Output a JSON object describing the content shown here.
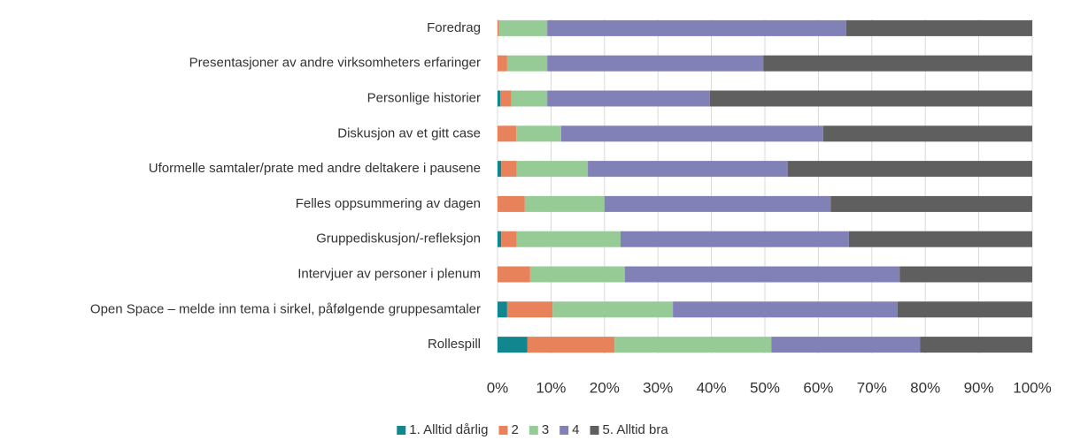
{
  "chart_data": {
    "type": "stacked-bar-horizontal",
    "categories": [
      "Foredrag",
      "Presentasjoner av andre virksomheters erfaringer",
      "Personlige historier",
      "Diskusjon av et gitt case",
      "Uformelle samtaler/prate med andre deltakere i pausene",
      "Felles oppsummering av dagen",
      "Gruppediskusjon/-refleksjon",
      "Intervjuer av personer i plenum",
      "Open Space – melde inn tema i sirkel, påfølgende gruppesamtaler",
      "Rollespill"
    ],
    "series": [
      {
        "name": "1. Alltid dårlig",
        "color": "#12868f",
        "values": [
          0,
          0,
          0.5,
          0,
          0.7,
          0,
          0.7,
          0,
          1.8,
          5.6
        ]
      },
      {
        "name": "2",
        "color": "#e8825a",
        "values": [
          0.3,
          1.8,
          2.1,
          3.5,
          2.9,
          5.1,
          2.9,
          6.1,
          8.5,
          16.3
        ]
      },
      {
        "name": "3",
        "color": "#97cb95",
        "values": [
          9.0,
          7.5,
          6.7,
          8.4,
          13.3,
          14.9,
          19.4,
          17.7,
          22.5,
          29.3
        ]
      },
      {
        "name": "4",
        "color": "#8181b7",
        "values": [
          55.9,
          40.4,
          30.4,
          49.0,
          37.4,
          42.3,
          42.7,
          51.4,
          42.0,
          27.8
        ]
      },
      {
        "name": "5. Alltid bra",
        "color": "#5f5f5f",
        "values": [
          34.8,
          50.3,
          60.3,
          39.1,
          45.7,
          37.7,
          34.3,
          24.8,
          25.2,
          21.0
        ]
      }
    ],
    "xlim": [
      0,
      100
    ],
    "xticks": [
      {
        "value": 0,
        "label": "0%"
      },
      {
        "value": 10,
        "label": "10%"
      },
      {
        "value": 20,
        "label": "20%"
      },
      {
        "value": 30,
        "label": "30%"
      },
      {
        "value": 40,
        "label": "40%"
      },
      {
        "value": 50,
        "label": "50%"
      },
      {
        "value": 60,
        "label": "60%"
      },
      {
        "value": 70,
        "label": "70%"
      },
      {
        "value": 80,
        "label": "80%"
      },
      {
        "value": 90,
        "label": "90%"
      },
      {
        "value": 100,
        "label": "100%"
      }
    ],
    "grid": true,
    "legend": "bottom"
  }
}
